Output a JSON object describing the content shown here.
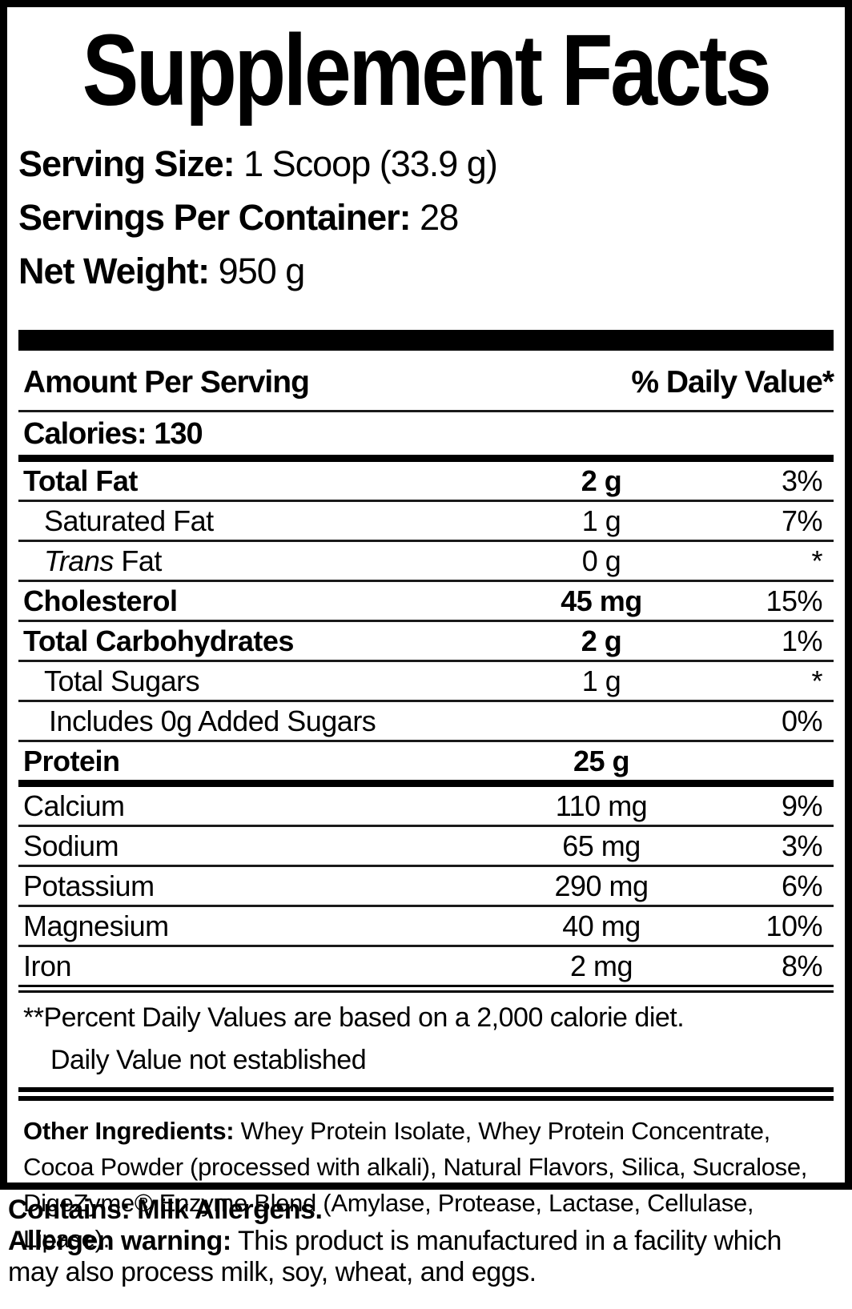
{
  "panel": {
    "title": "Supplement Facts",
    "serving": [
      {
        "label": "Serving Size:",
        "value": "1 Scoop (33.9 g)"
      },
      {
        "label": "Servings Per Container:",
        "value": "28"
      },
      {
        "label": "Net Weight:",
        "value": "950 g"
      }
    ],
    "columns": {
      "left": "Amount Per Serving",
      "right": "% Daily Value*"
    },
    "calories": {
      "label": "Calories:",
      "value": "130"
    },
    "rows": [
      {
        "label": "Total Fat",
        "amount": "2 g",
        "dv": "3%",
        "label_bold": true,
        "amount_bold": true,
        "indent": 0,
        "after": "thin"
      },
      {
        "label": "Saturated Fat",
        "amount": "1 g",
        "dv": "7%",
        "label_bold": false,
        "amount_bold": false,
        "indent": 1,
        "after": "thin"
      },
      {
        "label": "Fat",
        "italic_prefix": "Trans",
        "amount": "0 g",
        "dv": "*",
        "label_bold": false,
        "amount_bold": false,
        "indent": 1,
        "after": "thin"
      },
      {
        "label": "Cholesterol",
        "amount": "45 mg",
        "dv": "15%",
        "label_bold": true,
        "amount_bold": true,
        "indent": 0,
        "after": "thin"
      },
      {
        "label": "Total Carbohydrates",
        "amount": "2 g",
        "dv": "1%",
        "label_bold": true,
        "amount_bold": true,
        "indent": 0,
        "after": "thin"
      },
      {
        "label": "Total Sugars",
        "amount": "1 g",
        "dv": "*",
        "label_bold": false,
        "amount_bold": false,
        "indent": 1,
        "after": "thin"
      },
      {
        "label": "Includes 0g Added Sugars",
        "amount": "",
        "dv": "0%",
        "label_bold": false,
        "amount_bold": false,
        "indent": 2,
        "after": "thin"
      },
      {
        "label": "Protein",
        "amount": "25 g",
        "dv": "",
        "label_bold": true,
        "amount_bold": true,
        "indent": 0,
        "after": "thick"
      },
      {
        "label": "Calcium",
        "amount": "110 mg",
        "dv": "9%",
        "label_bold": false,
        "amount_bold": false,
        "indent": 0,
        "after": "thin"
      },
      {
        "label": "Sodium",
        "amount": "65 mg",
        "dv": "3%",
        "label_bold": false,
        "amount_bold": false,
        "indent": 0,
        "after": "thin"
      },
      {
        "label": "Potassium",
        "amount": "290 mg",
        "dv": "6%",
        "label_bold": false,
        "amount_bold": false,
        "indent": 0,
        "after": "thin"
      },
      {
        "label": "Magnesium",
        "amount": "40 mg",
        "dv": "10%",
        "label_bold": false,
        "amount_bold": false,
        "indent": 0,
        "after": "thin"
      },
      {
        "label": "Iron",
        "amount": "2 mg",
        "dv": "8%",
        "label_bold": false,
        "amount_bold": false,
        "indent": 0,
        "after": "med"
      }
    ],
    "footnotes": [
      "**Percent Daily Values are based on a 2,000 calorie diet.",
      "Daily Value not established"
    ],
    "other_ingredients": {
      "label": "Other Ingredients:",
      "text": "Whey Protein Isolate, Whey Protein Concentrate, Cocoa Powder (processed with alkali), Natural Flavors, Silica, Sucralose, DigeZyme® Enzyme Blend (Amylase, Protease, Lactase, Cellulase, Lipase)."
    }
  },
  "bottom": {
    "contains": "Contains: Milk Allergens.",
    "allergen_label": "Allergen warning:",
    "allergen_text": "This product is manufactured in a facility which may also process milk, soy, wheat, and eggs."
  },
  "colors": {
    "text": "#000000",
    "background": "#ffffff",
    "divider": "#1a1a1a"
  }
}
